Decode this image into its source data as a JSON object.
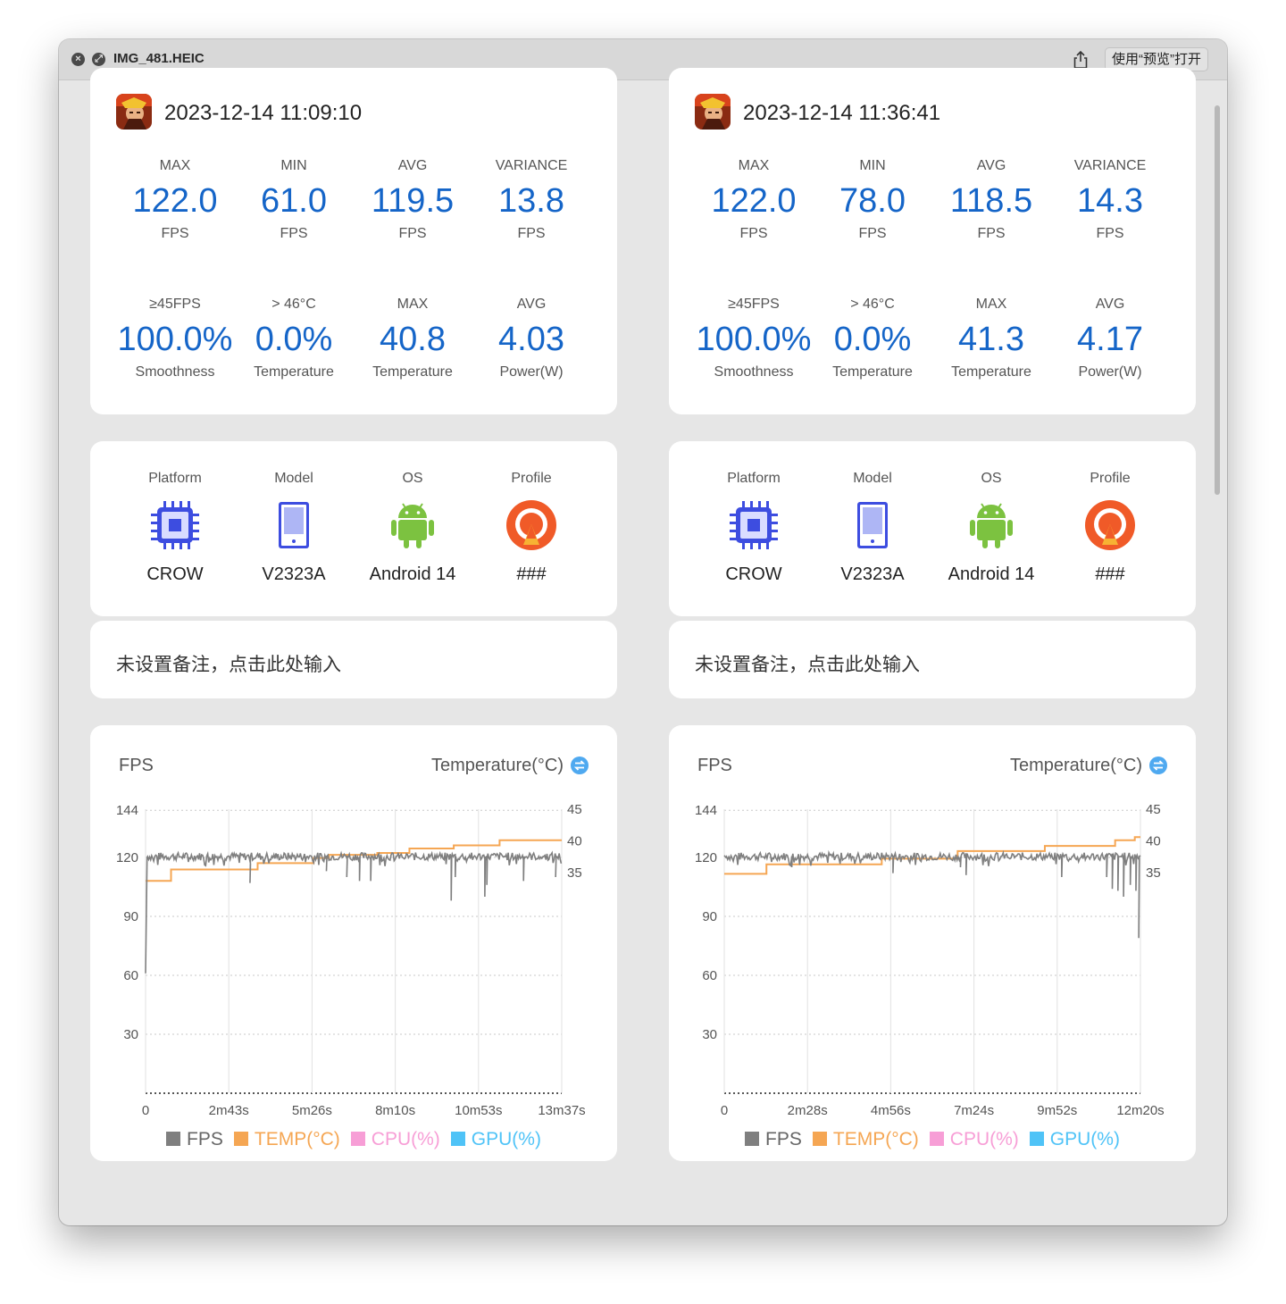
{
  "window": {
    "title": "IMG_481.HEIC",
    "open_with_label": "使用“预览”打开",
    "close_icon": "close-icon",
    "fullscreen_icon": "fullscreen-icon",
    "share_icon": "share-icon"
  },
  "colors": {
    "value_blue": "#1565c8",
    "fps_line": "#7f7f7f",
    "temp_line": "#f5a653",
    "cpu": "#f79ed6",
    "gpu": "#4fc3f7",
    "profile_orange": "#f05a28",
    "android_green": "#7cc240",
    "chip_blue": "#3d4de0"
  },
  "sessions": [
    {
      "datetime": "2023-12-14 11:09:10",
      "stats": [
        {
          "label": "MAX",
          "value": "122.0",
          "unit": "FPS"
        },
        {
          "label": "MIN",
          "value": "61.0",
          "unit": "FPS"
        },
        {
          "label": "AVG",
          "value": "119.5",
          "unit": "FPS"
        },
        {
          "label": "VARIANCE",
          "value": "13.8",
          "unit": "FPS"
        },
        {
          "label": "≥45FPS",
          "value": "100.0%",
          "unit": "Smoothness"
        },
        {
          "label": "> 46°C",
          "value": "0.0%",
          "unit": "Temperature"
        },
        {
          "label": "MAX",
          "value": "40.8",
          "unit": "Temperature"
        },
        {
          "label": "AVG",
          "value": "4.03",
          "unit": "Power(W)"
        }
      ],
      "device": [
        {
          "label": "Platform",
          "value": "CROW",
          "icon": "chip-icon"
        },
        {
          "label": "Model",
          "value": "V2323A",
          "icon": "phone-icon"
        },
        {
          "label": "OS",
          "value": "Android 14",
          "icon": "android-icon"
        },
        {
          "label": "Profile",
          "value": "###",
          "icon": "profile-icon"
        }
      ],
      "note": "未设置备注，点击此处输入",
      "chart_data": {
        "type": "line",
        "left_label": "FPS",
        "right_label": "Temperature(°C)",
        "x_ticks": [
          "0",
          "2m43s",
          "5m26s",
          "8m10s",
          "10m53s",
          "13m37s"
        ],
        "x_range_seconds": [
          0,
          817
        ],
        "y_left_ticks": [
          30,
          60,
          90,
          120,
          144
        ],
        "y_left_range": [
          0,
          144
        ],
        "y_right_ticks": [
          35,
          40,
          45
        ],
        "y_right_range": [
          0,
          45
        ],
        "fps": {
          "baseline": 120.5,
          "start": [
            [
              0,
              61
            ],
            [
              3,
              120
            ]
          ],
          "dips": [
            [
              205,
              107
            ],
            [
              355,
              113
            ],
            [
              395,
              110
            ],
            [
              420,
              108
            ],
            [
              442,
              108
            ],
            [
              600,
              98
            ],
            [
              608,
              110
            ],
            [
              666,
              100
            ],
            [
              670,
              106
            ],
            [
              742,
              108
            ],
            [
              805,
              110
            ]
          ]
        },
        "temp_steps": [
          [
            0,
            33.7
          ],
          [
            50,
            35.5
          ],
          [
            220,
            36.5
          ],
          [
            330,
            37.3
          ],
          [
            360,
            37.8
          ],
          [
            455,
            38.1
          ],
          [
            518,
            38.8
          ],
          [
            605,
            39.3
          ],
          [
            695,
            40.1
          ],
          [
            817,
            40.1
          ]
        ],
        "legend": [
          {
            "name": "FPS",
            "color": "#7f7f7f"
          },
          {
            "name": "TEMP(°C)",
            "color": "#f5a653"
          },
          {
            "name": "CPU(%)",
            "color": "#f79ed6"
          },
          {
            "name": "GPU(%)",
            "color": "#4fc3f7"
          }
        ]
      }
    },
    {
      "datetime": "2023-12-14 11:36:41",
      "stats": [
        {
          "label": "MAX",
          "value": "122.0",
          "unit": "FPS"
        },
        {
          "label": "MIN",
          "value": "78.0",
          "unit": "FPS"
        },
        {
          "label": "AVG",
          "value": "118.5",
          "unit": "FPS"
        },
        {
          "label": "VARIANCE",
          "value": "14.3",
          "unit": "FPS"
        },
        {
          "label": "≥45FPS",
          "value": "100.0%",
          "unit": "Smoothness"
        },
        {
          "label": "> 46°C",
          "value": "0.0%",
          "unit": "Temperature"
        },
        {
          "label": "MAX",
          "value": "41.3",
          "unit": "Temperature"
        },
        {
          "label": "AVG",
          "value": "4.17",
          "unit": "Power(W)"
        }
      ],
      "device": [
        {
          "label": "Platform",
          "value": "CROW",
          "icon": "chip-icon"
        },
        {
          "label": "Model",
          "value": "V2323A",
          "icon": "phone-icon"
        },
        {
          "label": "OS",
          "value": "Android 14",
          "icon": "android-icon"
        },
        {
          "label": "Profile",
          "value": "###",
          "icon": "profile-icon"
        }
      ],
      "note": "未设置备注，点击此处输入",
      "chart_data": {
        "type": "line",
        "left_label": "FPS",
        "right_label": "Temperature(°C)",
        "x_ticks": [
          "0",
          "2m28s",
          "4m56s",
          "7m24s",
          "9m52s",
          "12m20s"
        ],
        "x_range_seconds": [
          0,
          740
        ],
        "y_left_ticks": [
          30,
          60,
          90,
          120,
          144
        ],
        "y_left_range": [
          0,
          144
        ],
        "y_right_ticks": [
          35,
          40,
          45
        ],
        "y_right_range": [
          0,
          45
        ],
        "fps": {
          "baseline": 120.5,
          "start": [
            [
              0,
              121
            ],
            [
              3,
              120
            ]
          ],
          "dips": [
            [
              120,
              115
            ],
            [
              300,
              112
            ],
            [
              420,
              115
            ],
            [
              430,
              111
            ],
            [
              600,
              110
            ],
            [
              680,
              110
            ],
            [
              690,
              104
            ],
            [
              700,
              103
            ],
            [
              710,
              100
            ],
            [
              722,
              106
            ],
            [
              732,
              103
            ],
            [
              737,
              79
            ]
          ]
        },
        "temp_steps": [
          [
            0,
            34.8
          ],
          [
            75,
            36.3
          ],
          [
            280,
            37.2
          ],
          [
            415,
            38.4
          ],
          [
            570,
            39.2
          ],
          [
            695,
            40.1
          ],
          [
            730,
            40.6
          ],
          [
            740,
            40.6
          ]
        ],
        "legend": [
          {
            "name": "FPS",
            "color": "#7f7f7f"
          },
          {
            "name": "TEMP(°C)",
            "color": "#f5a653"
          },
          {
            "name": "CPU(%)",
            "color": "#f79ed6"
          },
          {
            "name": "GPU(%)",
            "color": "#4fc3f7"
          }
        ]
      }
    }
  ]
}
